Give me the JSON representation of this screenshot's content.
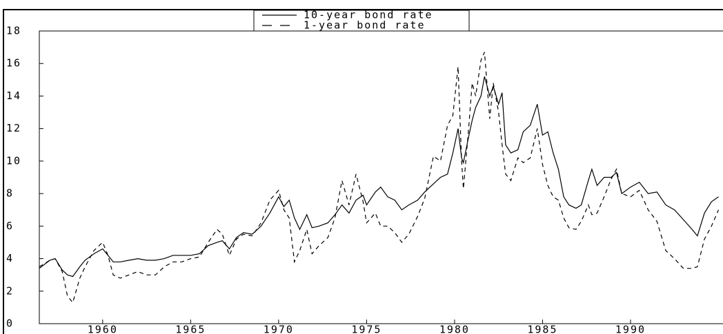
{
  "chart_data": {
    "type": "line",
    "legend": "top",
    "x": [
      1956.4,
      1957.0,
      1957.3,
      1957.7,
      1958.0,
      1958.3,
      1958.7,
      1959.0,
      1959.5,
      1960.0,
      1960.3,
      1960.6,
      1961.0,
      1961.5,
      1962.0,
      1962.5,
      1963.0,
      1963.5,
      1964.0,
      1964.5,
      1965.0,
      1965.5,
      1966.0,
      1966.5,
      1966.8,
      1967.2,
      1967.6,
      1968.0,
      1968.5,
      1969.0,
      1969.5,
      1970.0,
      1970.3,
      1970.6,
      1970.9,
      1971.2,
      1971.6,
      1971.9,
      1972.3,
      1972.8,
      1973.2,
      1973.6,
      1974.0,
      1974.4,
      1974.8,
      1975.0,
      1975.5,
      1975.8,
      1976.2,
      1976.6,
      1977.0,
      1977.4,
      1977.9,
      1978.3,
      1978.8,
      1979.2,
      1979.6,
      1979.9,
      1980.2,
      1980.4,
      1980.5,
      1980.8,
      1981.0,
      1981.2,
      1981.5,
      1981.7,
      1982.0,
      1982.2,
      1982.5,
      1982.7,
      1982.9,
      1983.2,
      1983.6,
      1983.9,
      1984.3,
      1984.7,
      1985.0,
      1985.3,
      1985.6,
      1985.9,
      1986.2,
      1986.5,
      1986.9,
      1987.2,
      1987.6,
      1987.8,
      1988.1,
      1988.5,
      1988.9,
      1989.2,
      1989.5,
      1990.0,
      1990.5,
      1991.0,
      1991.5,
      1992.0,
      1992.5,
      1993.0,
      1993.5,
      1993.8,
      1994.2,
      1994.6,
      1995.0
    ],
    "series": [
      {
        "name": "10-year bond rate",
        "color": "#000000",
        "dash": "none",
        "values": [
          3.4,
          3.9,
          4.0,
          3.3,
          3.0,
          2.9,
          3.5,
          3.9,
          4.3,
          4.6,
          4.2,
          3.8,
          3.8,
          3.9,
          4.0,
          3.9,
          3.9,
          4.0,
          4.2,
          4.2,
          4.2,
          4.3,
          4.8,
          5.0,
          5.1,
          4.6,
          5.3,
          5.6,
          5.5,
          6.0,
          6.8,
          7.8,
          7.2,
          7.6,
          6.5,
          5.8,
          6.7,
          5.9,
          6.0,
          6.2,
          6.7,
          7.3,
          6.8,
          7.6,
          7.9,
          7.3,
          8.1,
          8.4,
          7.8,
          7.6,
          7.0,
          7.3,
          7.6,
          8.1,
          8.6,
          9.0,
          9.2,
          10.5,
          12.0,
          10.2,
          9.9,
          11.5,
          12.5,
          13.3,
          14.0,
          15.2,
          14.0,
          14.6,
          13.5,
          14.2,
          11.0,
          10.5,
          10.7,
          11.8,
          12.2,
          13.5,
          11.6,
          11.8,
          10.5,
          9.5,
          7.8,
          7.3,
          7.1,
          7.3,
          8.8,
          9.5,
          8.5,
          9.0,
          9.0,
          9.3,
          8.0,
          8.4,
          8.7,
          8.0,
          8.1,
          7.3,
          7.0,
          6.4,
          5.8,
          5.4,
          6.8,
          7.5,
          7.8
        ]
      },
      {
        "name": "1-year bond rate",
        "color": "#000000",
        "dash": "6 5",
        "values": [
          3.5,
          3.9,
          4.0,
          3.2,
          1.7,
          1.3,
          2.8,
          3.5,
          4.5,
          5.0,
          4.2,
          3.0,
          2.8,
          3.0,
          3.2,
          3.0,
          3.0,
          3.5,
          3.8,
          3.8,
          4.0,
          4.1,
          5.0,
          5.8,
          5.5,
          4.2,
          5.2,
          5.5,
          5.4,
          6.2,
          7.6,
          8.2,
          7.0,
          6.5,
          3.8,
          4.5,
          5.8,
          4.3,
          4.8,
          5.3,
          6.5,
          8.8,
          7.3,
          9.2,
          7.5,
          6.2,
          6.8,
          6.0,
          6.0,
          5.6,
          5.0,
          5.5,
          6.6,
          7.7,
          10.3,
          10.0,
          12.2,
          12.8,
          15.8,
          10.0,
          8.3,
          12.0,
          14.8,
          14.0,
          16.2,
          16.7,
          12.6,
          14.8,
          13.0,
          11.0,
          9.2,
          8.8,
          10.2,
          9.9,
          10.2,
          12.0,
          9.8,
          8.5,
          7.8,
          7.6,
          6.5,
          5.9,
          5.8,
          6.3,
          7.3,
          6.7,
          6.8,
          7.8,
          8.9,
          9.5,
          8.0,
          7.8,
          8.2,
          7.0,
          6.3,
          4.5,
          4.0,
          3.4,
          3.4,
          3.5,
          5.2,
          6.0,
          7.0
        ]
      }
    ],
    "xlim": [
      1956.4,
      1995.2
    ],
    "xticks": [
      1960,
      1965,
      1970,
      1975,
      1980,
      1985,
      1990
    ],
    "ylim": [
      0,
      18
    ],
    "yticks": [
      0,
      2,
      4,
      6,
      8,
      10,
      12,
      14,
      16,
      18
    ]
  }
}
